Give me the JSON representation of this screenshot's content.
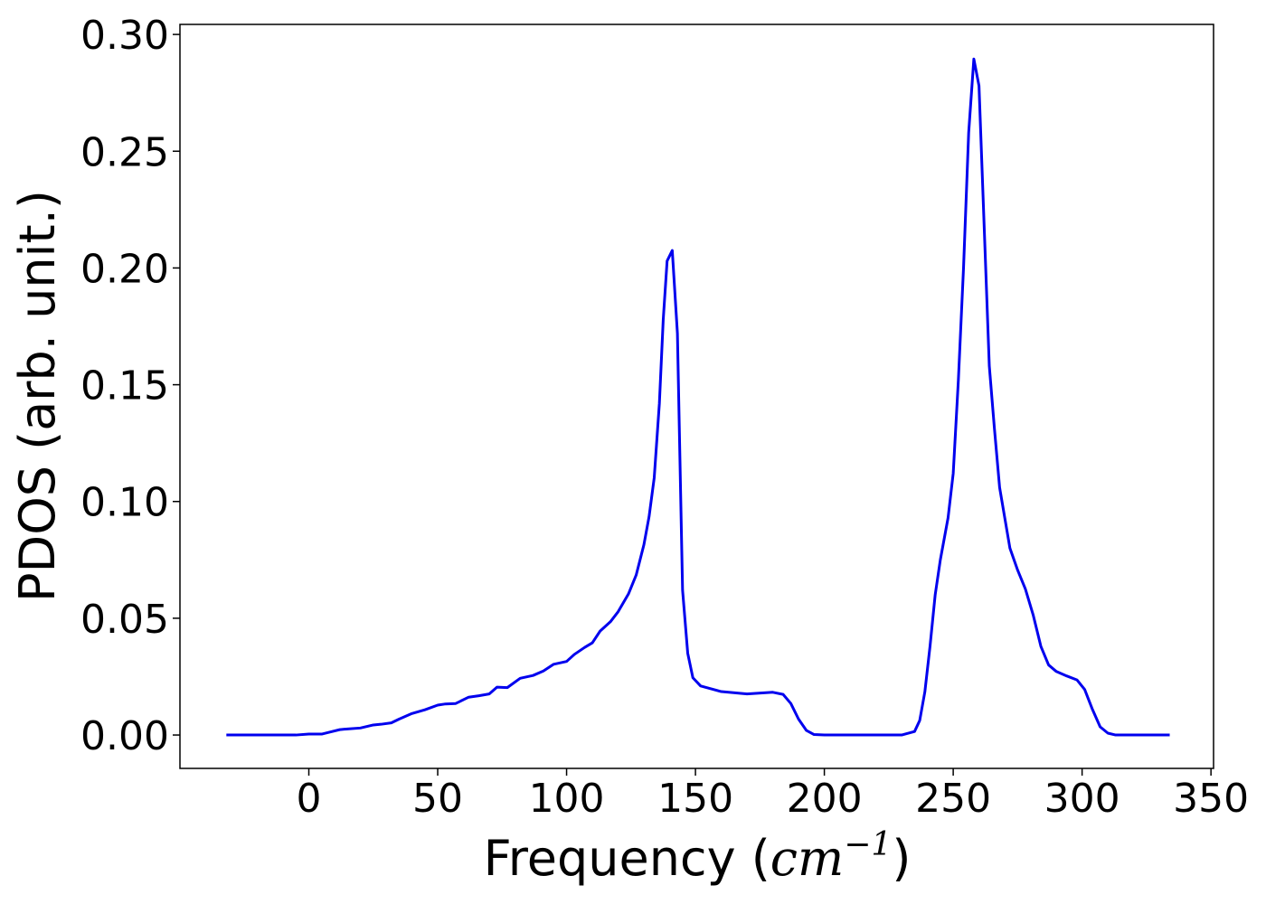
{
  "chart_data": {
    "type": "line",
    "title": "",
    "xlabel_prefix": "Frequency (",
    "xlabel_unit_base": "cm",
    "xlabel_unit_exp": "−1",
    "xlabel_suffix": ")",
    "ylabel": "PDOS (arb. unit.)",
    "xlim": [
      -50,
      351
    ],
    "ylim": [
      -0.0143,
      0.3043
    ],
    "x_ticks": [
      0,
      50,
      100,
      150,
      200,
      250,
      300,
      350
    ],
    "x_tick_labels": [
      "0",
      "50",
      "100",
      "150",
      "200",
      "250",
      "300",
      "350"
    ],
    "y_ticks": [
      0.0,
      0.05,
      0.1,
      0.15,
      0.2,
      0.25,
      0.3
    ],
    "y_tick_labels": [
      "0.00",
      "0.05",
      "0.10",
      "0.15",
      "0.20",
      "0.25",
      "0.30"
    ],
    "grid": false,
    "legend": "none",
    "series": [
      {
        "color": "#0000ee",
        "x": [
          -32,
          -20,
          -10,
          -5,
          0,
          5,
          8,
          12,
          15,
          20,
          25,
          28,
          32,
          35,
          40,
          45,
          50,
          53,
          57,
          62,
          66,
          70,
          73,
          77,
          82,
          87,
          91,
          95,
          100,
          103,
          107,
          110,
          113,
          117,
          120,
          124,
          127,
          130,
          132,
          134,
          136,
          137.5,
          139,
          141,
          143,
          145,
          147,
          149,
          152,
          160,
          170,
          180,
          184,
          187,
          190,
          193,
          196,
          200,
          210,
          220,
          230,
          235,
          237,
          239,
          241,
          243,
          245,
          248,
          250,
          252,
          254,
          256,
          258,
          260,
          262,
          264,
          266,
          268,
          270,
          272,
          275,
          278,
          281,
          284,
          287,
          290,
          294,
          298,
          301,
          304,
          307,
          310,
          313,
          320,
          334
        ],
        "y": [
          0,
          0,
          0,
          0,
          0.0004,
          0.0004,
          0.0012,
          0.0023,
          0.0026,
          0.003,
          0.0043,
          0.0046,
          0.0052,
          0.0068,
          0.0092,
          0.0108,
          0.0128,
          0.0133,
          0.0135,
          0.0162,
          0.0168,
          0.0176,
          0.0205,
          0.0203,
          0.0243,
          0.0255,
          0.0274,
          0.0303,
          0.0315,
          0.0345,
          0.0375,
          0.0395,
          0.0445,
          0.0485,
          0.0528,
          0.0604,
          0.0685,
          0.0815,
          0.0935,
          0.1102,
          0.142,
          0.178,
          0.203,
          0.2075,
          0.172,
          0.062,
          0.035,
          0.0245,
          0.021,
          0.0186,
          0.0176,
          0.0183,
          0.0174,
          0.0135,
          0.0068,
          0.002,
          0.0002,
          0,
          0,
          0,
          0,
          0.0015,
          0.0062,
          0.0185,
          0.038,
          0.06,
          0.075,
          0.093,
          0.112,
          0.152,
          0.2,
          0.258,
          0.2895,
          0.278,
          0.218,
          0.158,
          0.131,
          0.106,
          0.093,
          0.08,
          0.0706,
          0.0625,
          0.0515,
          0.038,
          0.03,
          0.0272,
          0.0253,
          0.0236,
          0.0195,
          0.011,
          0.0035,
          0.0008,
          0,
          0,
          0
        ]
      }
    ]
  }
}
